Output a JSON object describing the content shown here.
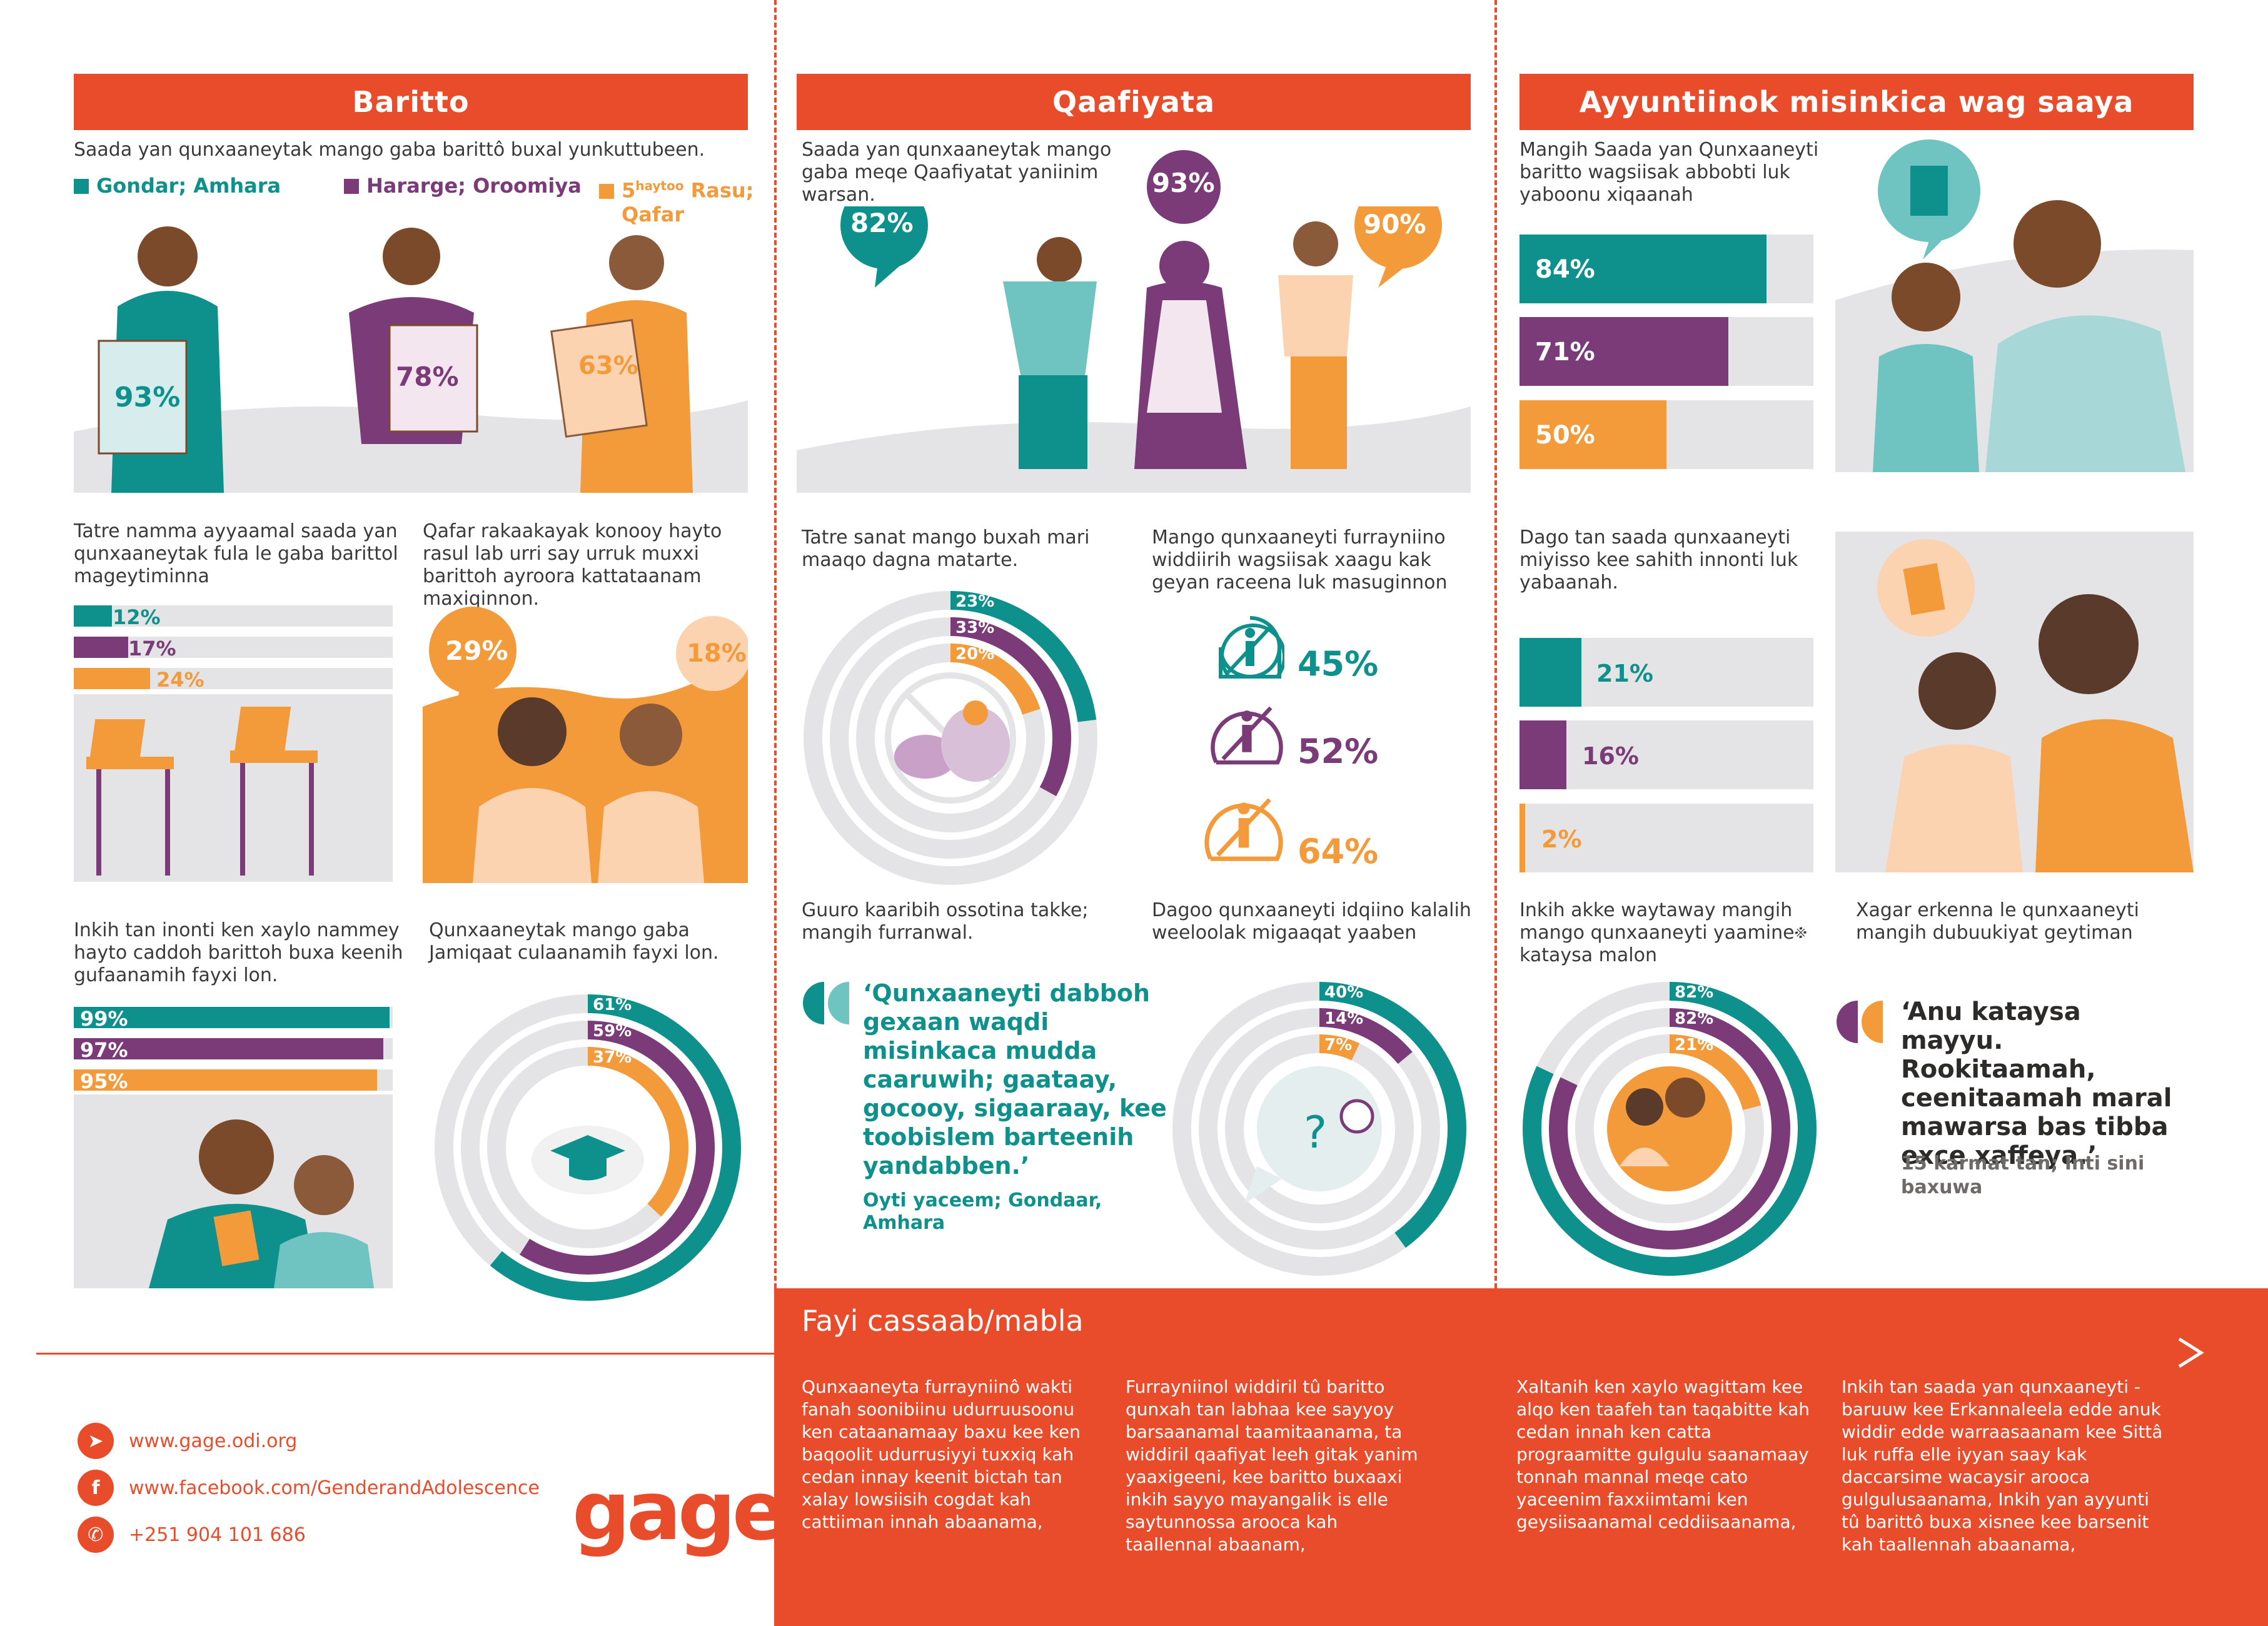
{
  "colors": {
    "teal": "#0e918c",
    "purple": "#7b3b78",
    "orange": "#f39a3b",
    "red": "#e84c2b",
    "grey": "#e4e4e6"
  },
  "col1": {
    "header": "Baritto",
    "intro": "Saada yan qunxaaneytak mango gaba barittô buxal yunkuttubeen.",
    "legend": [
      {
        "label": "Gondar; Amhara",
        "color": "#0e918c"
      },
      {
        "label": "Hararge; Oroomiya",
        "color": "#7b3b78"
      },
      {
        "label": "5haytoo Rasu;",
        "line2": "Qafar",
        "sup": "haytoo",
        "pre": "5",
        "post": " Rasu;",
        "color": "#f39a3b"
      }
    ],
    "figure_pcts": [
      "93%",
      "78%",
      "63%"
    ],
    "dropout_text": "Tatre namma ayyaamal saada yan qunxaaneytak fula le gaba barittol mageytiminna",
    "dropout_bars": [
      {
        "label": "12%",
        "value": 12,
        "color": "#0e918c"
      },
      {
        "label": "17%",
        "value": 17,
        "color": "#7b3b78"
      },
      {
        "label": "24%",
        "value": 24,
        "color": "#f39a3b"
      }
    ],
    "qafar_text": "Qafar rakaakayak konooy hayto rasul lab urri say urruk muxxi barittoh ayroora kattataanam maxiqinnon.",
    "qafar_pcts": [
      "29%",
      "18%"
    ],
    "friend_text": "Inkih tan inonti ken xaylo  nammey hayto caddoh barittoh buxa keenih gufaanamih  fayxi lon.",
    "friend_bars": [
      {
        "label": "99%",
        "value": 99,
        "color": "#0e918c"
      },
      {
        "label": "97%",
        "value": 97,
        "color": "#7b3b78"
      },
      {
        "label": "95%",
        "value": 95,
        "color": "#f39a3b"
      }
    ],
    "univ_text": "Qunxaaneytak mango gaba Jamiqaat culaanamih fayxi lon.",
    "univ_rings": [
      {
        "label": "61%",
        "value": 61,
        "color": "#0e918c"
      },
      {
        "label": "59%",
        "value": 59,
        "color": "#7b3b78"
      },
      {
        "label": "37%",
        "value": 37,
        "color": "#f39a3b"
      }
    ]
  },
  "col2": {
    "header": "Qaafiyata",
    "intro": "Saada yan qunxaaneytak mango gaba meqe Qaafiyatat yaniinim warsan.",
    "health_pcts": [
      {
        "label": "82%",
        "color": "#0e918c"
      },
      {
        "label": "93%",
        "color": "#7b3b78"
      },
      {
        "label": "90%",
        "color": "#f39a3b"
      }
    ],
    "food_text": "Tatre sanat mango buxah mari maaqo dagna matarte.",
    "food_rings": [
      {
        "label": "23%",
        "value": 23,
        "color": "#0e918c"
      },
      {
        "label": "33%",
        "value": 33,
        "color": "#7b3b78"
      },
      {
        "label": "20%",
        "value": 20,
        "color": "#f39a3b"
      }
    ],
    "menstr_text": "Mango qunxaaneyti furrayniino widdiirih wagsiisak xaagu kak geyan raceena luk masuginnon",
    "menstr_items": [
      {
        "label": "45%",
        "color": "#0e918c"
      },
      {
        "label": "52%",
        "color": "#7b3b78"
      },
      {
        "label": "64%",
        "color": "#f39a3b"
      }
    ],
    "guuro_text": "Guuro kaaribih ossotina takke; mangih furranwal.",
    "quote": "‘Qunxaaneyti dabboh gexaan waqdi misinkaca mudda caaruwih; gaataay, gocooy, sigaaraay, kee toobislem barteenih yandabben.’",
    "quote_attr": "Oyti yaceem; Gondaar, Amhara",
    "contra_text": "Dagoo qunxaaneyti idqiino kalalih weeloolak migaaqat yaaben",
    "contra_rings": [
      {
        "label": "40%",
        "value": 40,
        "color": "#0e918c"
      },
      {
        "label": "14%",
        "value": 14,
        "color": "#7b3b78"
      },
      {
        "label": "7%",
        "value": 7,
        "color": "#f39a3b"
      }
    ]
  },
  "col3": {
    "header": "Ayyuntiinok misinkica wag saaya",
    "intro": "Mangih Saada yan Qunxaaneyti baritto wagsiisak abbobti luk yaboonu xiqaanah",
    "father_bars": [
      {
        "label": "84%",
        "value": 84,
        "color": "#0e918c"
      },
      {
        "label": "71%",
        "value": 71,
        "color": "#7b3b78"
      },
      {
        "label": "50%",
        "value": 50,
        "color": "#f39a3b"
      }
    ],
    "violence_text": "Dago tan saada qunxaaneyti miyisso kee sahith innonti luk yabaanah.",
    "violence_bars": [
      {
        "label": "21%",
        "value": 21,
        "color": "#0e918c"
      },
      {
        "label": "16%",
        "value": 16,
        "color": "#7b3b78"
      },
      {
        "label": "2%",
        "value": 2,
        "color": "#f39a3b"
      }
    ],
    "mother_text": "Inkih akke waytaway mangih mango qunxaaneyti yaamine‍፠ kataysa malon",
    "mother_rings": [
      {
        "label": "82%",
        "value": 82,
        "color": "#0e918c"
      },
      {
        "label": "82%",
        "value": 82,
        "color": "#7b3b78"
      },
      {
        "label": "21%",
        "value": 21,
        "color": "#f39a3b"
      }
    ],
    "xagar_text": "Xagar erkenna le qunxaaneyti mangih dubuukiyat geytiman",
    "quote": "‘Anu kataysa mayyu. Rookitaamah, ceenitaamah maral mawarsa bas tibba exce xaffeya.’",
    "quote_attr": "15 karmat tan; Inti sini baxuwa"
  },
  "footer": {
    "title": "Fayi cassaab/mabla",
    "cols": [
      "Qunxaaneyta furrayniinô wakti fanah soonibiinu udurruusoonu ken cataanamaay baxu kee ken baqoolit udurrusiyyi tuxxiq kah cedan innay keenit bictah tan xalay lowsiisih cogdat kah cattiiman innah abaanama,",
      "Furrayniinol widdiril tû baritto qunxah tan labhaa kee sayyoy barsaanamal taamitaanama, ta widdiril qaafiyat leeh gitak yanim yaaxigeeni, kee baritto buxaaxi inkih sayyo mayangalik is elle saytunnossa arooca kah taallennal abaanam,",
      "Xaltanih ken xaylo wagittam kee alqo ken taafeh tan taqabitte kah cedan innah ken catta prograamitte gulgulu saanamaay tonnah mannal meqe cato yaceenim faxxiimtami ken geysiisaanamal ceddiisaanama,",
      "Inkih tan saada yan qunxaaneyti - baruuw kee Erkannaleela edde anuk widdir edde warraasaanam kee Sittâ luk ruffa elle iyyan saay kak daccarsime wacaysir arooca gulgulusaanama, Inkih yan ayyunti  tû barittô buxa xisnee kee barsenit kah taallennah abaanama,"
    ],
    "contacts": [
      {
        "icon": "send-icon",
        "text": "www.gage.odi.org"
      },
      {
        "icon": "facebook-icon",
        "text": "www.facebook.com/GenderandAdolescence"
      },
      {
        "icon": "phone-icon",
        "text": "+251 904 101 686"
      }
    ],
    "logo": "gage"
  }
}
